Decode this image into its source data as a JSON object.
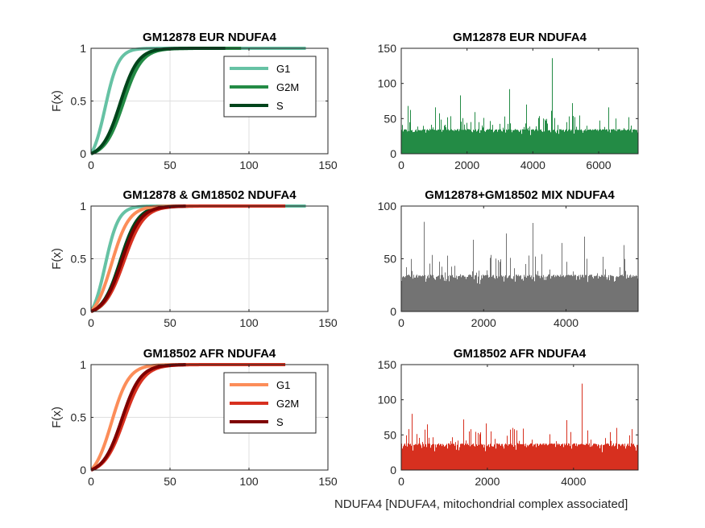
{
  "figure": {
    "xlabel_bottom": "NDUFA4 [NDUFA4, mitochondrial complex associated]"
  },
  "chart_data": [
    {
      "type": "line",
      "kind": "ecdf",
      "title": "GM12878 EUR NDUFA4",
      "ylabel": "F(x)",
      "xlim": [
        0,
        150
      ],
      "ylim": [
        0,
        1
      ],
      "xticks": [
        0,
        50,
        100,
        150
      ],
      "yticks": [
        0,
        0.5,
        1
      ],
      "grid": true,
      "legend": "top-right",
      "series": [
        {
          "name": "G1",
          "color": "#66c2a4",
          "median": 9,
          "spread": 4.2,
          "xmax": 136
        },
        {
          "name": "G2M",
          "color": "#238b45",
          "median": 20.5,
          "spread": 5.8,
          "xmax": 95
        },
        {
          "name": "S",
          "color": "#00441b",
          "median": 18.5,
          "spread": 5.6,
          "xmax": 85
        }
      ]
    },
    {
      "type": "bar",
      "kind": "per-cell-counts",
      "title": "GM12878 EUR NDUFA4",
      "xlim": [
        0,
        7200
      ],
      "ylim": [
        0,
        150
      ],
      "xticks": [
        0,
        2000,
        4000,
        6000
      ],
      "yticks": [
        0,
        50,
        100,
        150
      ],
      "color": "#238b45",
      "n": 7200,
      "typical_range": [
        5,
        35
      ],
      "peaks": [
        {
          "x": 4600,
          "y": 136
        },
        {
          "x": 3300,
          "y": 92
        },
        {
          "x": 1800,
          "y": 83
        },
        {
          "x": 200,
          "y": 68
        },
        {
          "x": 1050,
          "y": 66
        },
        {
          "x": 3800,
          "y": 70
        },
        {
          "x": 5200,
          "y": 72
        },
        {
          "x": 6300,
          "y": 66
        }
      ]
    },
    {
      "type": "line",
      "kind": "ecdf",
      "title": "GM12878 & GM18502 NDUFA4",
      "ylabel": "F(x)",
      "xlim": [
        0,
        150
      ],
      "ylim": [
        0,
        1
      ],
      "xticks": [
        0,
        50,
        100,
        150
      ],
      "yticks": [
        0,
        0.5,
        1
      ],
      "grid": true,
      "series": [
        {
          "name": "G1",
          "color": "#66c2a4",
          "median": 9,
          "spread": 4.2,
          "xmax": 136
        },
        {
          "name": "G2M",
          "color": "#238b45",
          "median": 20.5,
          "spread": 5.8,
          "xmax": 95
        },
        {
          "name": "S",
          "color": "#00441b",
          "median": 18.5,
          "spread": 5.6,
          "xmax": 85
        },
        {
          "name": "G1",
          "color": "#fc8d59",
          "median": 13,
          "spread": 5.5,
          "xmax": 90
        },
        {
          "name": "G2M",
          "color": "#d7301f",
          "median": 21,
          "spread": 6.2,
          "xmax": 123
        },
        {
          "name": "S",
          "color": "#7f0000",
          "median": 19.5,
          "spread": 5.9,
          "xmax": 60
        }
      ]
    },
    {
      "type": "bar",
      "kind": "per-cell-counts",
      "title": "GM12878+GM18502 MIX NDUFA4",
      "xlim": [
        0,
        5750
      ],
      "ylim": [
        0,
        100
      ],
      "xticks": [
        0,
        2000,
        4000
      ],
      "yticks": [
        0,
        50,
        100
      ],
      "color": "#737373",
      "n": 5750,
      "typical_range": [
        5,
        35
      ],
      "peaks": [
        {
          "x": 550,
          "y": 85
        },
        {
          "x": 3200,
          "y": 84
        },
        {
          "x": 4450,
          "y": 71
        },
        {
          "x": 2550,
          "y": 74
        },
        {
          "x": 1750,
          "y": 68
        },
        {
          "x": 3900,
          "y": 65
        },
        {
          "x": 5400,
          "y": 63
        }
      ]
    },
    {
      "type": "line",
      "kind": "ecdf",
      "title": "GM18502 AFR NDUFA4",
      "ylabel": "F(x)",
      "xlim": [
        0,
        150
      ],
      "ylim": [
        0,
        1
      ],
      "xticks": [
        0,
        50,
        100,
        150
      ],
      "yticks": [
        0,
        0.5,
        1
      ],
      "grid": true,
      "legend": "top-right",
      "series": [
        {
          "name": "G1",
          "color": "#fc8d59",
          "median": 13,
          "spread": 5.5,
          "xmax": 90
        },
        {
          "name": "G2M",
          "color": "#d7301f",
          "median": 21,
          "spread": 6.2,
          "xmax": 123
        },
        {
          "name": "S",
          "color": "#7f0000",
          "median": 19.5,
          "spread": 5.9,
          "xmax": 60
        }
      ]
    },
    {
      "type": "bar",
      "kind": "per-cell-counts",
      "title": "GM18502 AFR NDUFA4",
      "xlim": [
        0,
        5500
      ],
      "ylim": [
        0,
        150
      ],
      "xticks": [
        0,
        2000,
        4000
      ],
      "yticks": [
        0,
        50,
        100,
        150
      ],
      "color": "#d7301f",
      "n": 5500,
      "typical_range": [
        5,
        38
      ],
      "peaks": [
        {
          "x": 4200,
          "y": 123
        },
        {
          "x": 250,
          "y": 80
        },
        {
          "x": 1450,
          "y": 72
        },
        {
          "x": 3850,
          "y": 71
        },
        {
          "x": 600,
          "y": 65
        },
        {
          "x": 2600,
          "y": 60
        },
        {
          "x": 5000,
          "y": 60
        }
      ]
    }
  ]
}
